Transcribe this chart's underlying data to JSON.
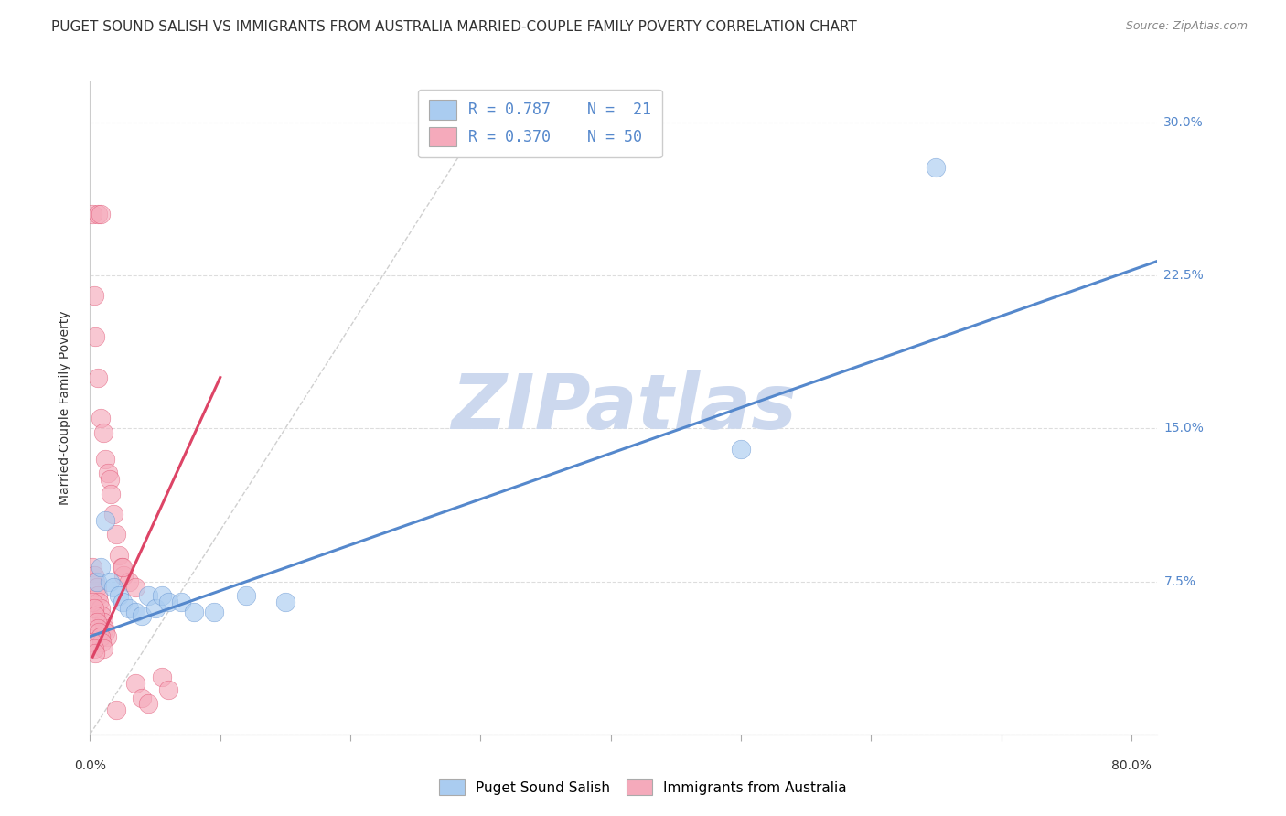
{
  "title": "PUGET SOUND SALISH VS IMMIGRANTS FROM AUSTRALIA MARRIED-COUPLE FAMILY POVERTY CORRELATION CHART",
  "source": "Source: ZipAtlas.com",
  "ylabel": "Married-Couple Family Poverty",
  "xlim": [
    0.0,
    0.82
  ],
  "ylim": [
    0.0,
    0.32
  ],
  "watermark": "ZIPatlas",
  "legend_blue_r": "R = 0.787",
  "legend_blue_n": "N =  21",
  "legend_pink_r": "R = 0.370",
  "legend_pink_n": "N = 50",
  "blue_color": "#aaccf0",
  "blue_line_color": "#5588cc",
  "pink_color": "#f5aabb",
  "pink_line_color": "#dd4466",
  "blue_scatter": [
    [
      0.005,
      0.075
    ],
    [
      0.008,
      0.082
    ],
    [
      0.012,
      0.105
    ],
    [
      0.015,
      0.075
    ],
    [
      0.018,
      0.072
    ],
    [
      0.022,
      0.068
    ],
    [
      0.025,
      0.065
    ],
    [
      0.03,
      0.062
    ],
    [
      0.035,
      0.06
    ],
    [
      0.04,
      0.058
    ],
    [
      0.045,
      0.068
    ],
    [
      0.05,
      0.062
    ],
    [
      0.055,
      0.068
    ],
    [
      0.06,
      0.065
    ],
    [
      0.07,
      0.065
    ],
    [
      0.08,
      0.06
    ],
    [
      0.095,
      0.06
    ],
    [
      0.12,
      0.068
    ],
    [
      0.15,
      0.065
    ],
    [
      0.5,
      0.14
    ],
    [
      0.65,
      0.278
    ]
  ],
  "pink_scatter": [
    [
      0.002,
      0.255
    ],
    [
      0.006,
      0.255
    ],
    [
      0.008,
      0.255
    ],
    [
      0.003,
      0.215
    ],
    [
      0.004,
      0.195
    ],
    [
      0.006,
      0.175
    ],
    [
      0.008,
      0.155
    ],
    [
      0.01,
      0.148
    ],
    [
      0.012,
      0.135
    ],
    [
      0.014,
      0.128
    ],
    [
      0.015,
      0.125
    ],
    [
      0.016,
      0.118
    ],
    [
      0.018,
      0.108
    ],
    [
      0.02,
      0.098
    ],
    [
      0.022,
      0.088
    ],
    [
      0.024,
      0.082
    ],
    [
      0.026,
      0.078
    ],
    [
      0.03,
      0.075
    ],
    [
      0.035,
      0.072
    ],
    [
      0.002,
      0.082
    ],
    [
      0.003,
      0.078
    ],
    [
      0.004,
      0.075
    ],
    [
      0.005,
      0.072
    ],
    [
      0.006,
      0.068
    ],
    [
      0.007,
      0.065
    ],
    [
      0.008,
      0.062
    ],
    [
      0.009,
      0.058
    ],
    [
      0.01,
      0.055
    ],
    [
      0.011,
      0.052
    ],
    [
      0.012,
      0.05
    ],
    [
      0.013,
      0.048
    ],
    [
      0.002,
      0.065
    ],
    [
      0.003,
      0.062
    ],
    [
      0.004,
      0.058
    ],
    [
      0.005,
      0.055
    ],
    [
      0.006,
      0.052
    ],
    [
      0.007,
      0.05
    ],
    [
      0.008,
      0.048
    ],
    [
      0.009,
      0.045
    ],
    [
      0.01,
      0.042
    ],
    [
      0.002,
      0.045
    ],
    [
      0.003,
      0.042
    ],
    [
      0.004,
      0.04
    ],
    [
      0.025,
      0.082
    ],
    [
      0.055,
      0.028
    ],
    [
      0.06,
      0.022
    ],
    [
      0.035,
      0.025
    ],
    [
      0.04,
      0.018
    ],
    [
      0.02,
      0.012
    ],
    [
      0.045,
      0.015
    ]
  ],
  "blue_line": [
    [
      0.0,
      0.048
    ],
    [
      0.82,
      0.232
    ]
  ],
  "pink_line": [
    [
      0.002,
      0.038
    ],
    [
      0.1,
      0.175
    ]
  ],
  "diag_line": [
    [
      0.0,
      0.0
    ],
    [
      0.3,
      0.3
    ]
  ],
  "grid_color": "#dddddd",
  "bg_color": "#ffffff",
  "title_fontsize": 11,
  "axis_label_fontsize": 10,
  "tick_fontsize": 10,
  "watermark_color": "#ccd8ee",
  "watermark_fontsize": 60
}
